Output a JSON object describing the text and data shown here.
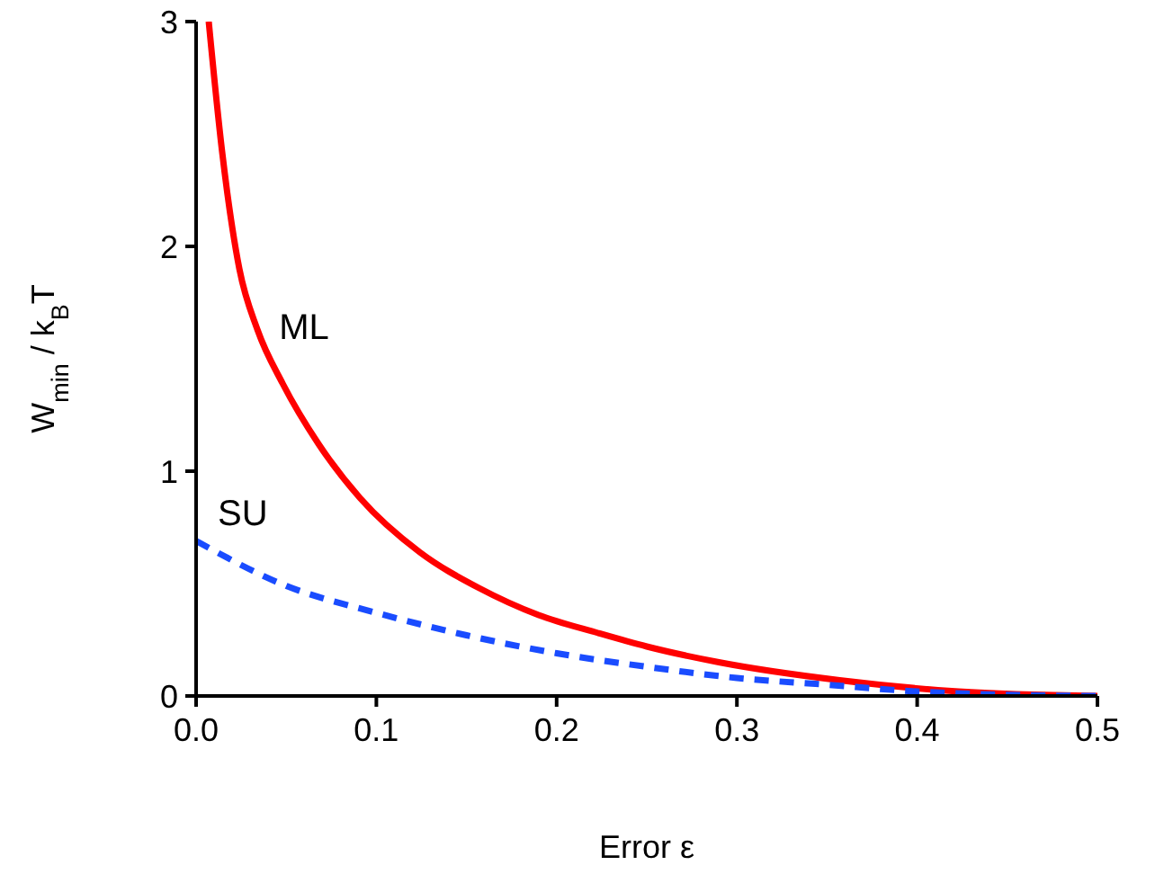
{
  "chart_data": {
    "type": "line",
    "xlabel": "Error  ε",
    "ylabel": "W$_{min}$ / k$_{B}$T",
    "xlim": [
      0,
      0.5
    ],
    "ylim": [
      0,
      3
    ],
    "xticks": [
      {
        "value": 0,
        "label": "0.0"
      },
      {
        "value": 0.1,
        "label": "0.1"
      },
      {
        "value": 0.2,
        "label": "0.2"
      },
      {
        "value": 0.3,
        "label": "0.3"
      },
      {
        "value": 0.4,
        "label": "0.4"
      },
      {
        "value": 0.5,
        "label": "0.5"
      }
    ],
    "yticks": [
      0,
      1,
      2,
      3
    ],
    "marker": "none",
    "series": [
      {
        "name": "ML",
        "color": "#ff0000",
        "line_style": "solid",
        "x": [
          0.007,
          0.0143,
          0.024,
          0.034,
          0.048,
          0.068,
          0.091,
          0.124,
          0.157,
          0.19,
          0.223,
          0.25,
          0.29,
          0.357,
          0.423,
          0.5
        ],
        "values": [
          3,
          2.43,
          1.9,
          1.63,
          1.39,
          1.12,
          0.88,
          0.64,
          0.48,
          0.36,
          0.28,
          0.22,
          0.15,
          0.07,
          0.02,
          0
        ]
      },
      {
        "name": "SU",
        "color": "#1a4cff",
        "line_style": "dashed",
        "x": [
          0,
          0.05,
          0.1,
          0.15,
          0.2,
          0.25,
          0.3,
          0.35,
          0.4,
          0.45,
          0.5
        ],
        "values": [
          0.69,
          0.49,
          0.37,
          0.27,
          0.19,
          0.13,
          0.08,
          0.05,
          0.02,
          0.005,
          0
        ]
      }
    ]
  }
}
